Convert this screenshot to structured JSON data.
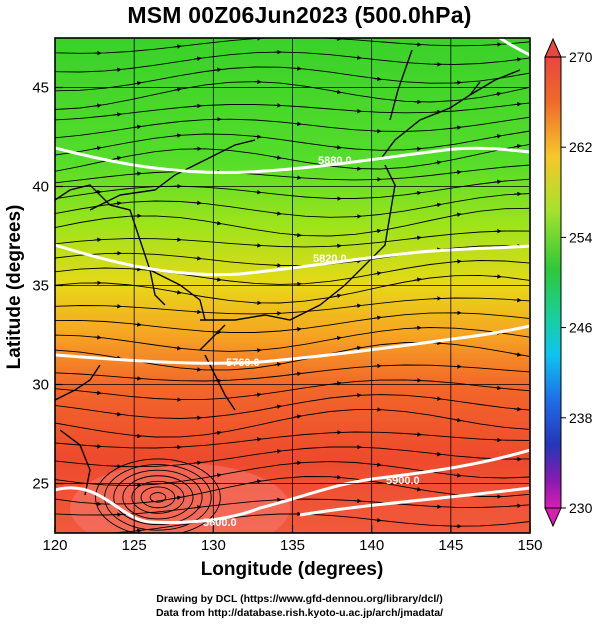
{
  "title": "MSM 00Z06Jun2023 (500.0hPa)",
  "axes": {
    "xlabel": "Longitude (degrees)",
    "ylabel": "Latitude  (degrees)",
    "x_ticks": [
      "120",
      "125",
      "130",
      "135",
      "140",
      "145",
      "150"
    ],
    "y_ticks": [
      "25",
      "30",
      "35",
      "40",
      "45"
    ]
  },
  "colorbar": {
    "ticks": [
      "270",
      "262",
      "254",
      "246",
      "238",
      "230"
    ]
  },
  "contour_labels": [
    "5880.0",
    "5820.0",
    "5760.0",
    "5700.0",
    "5640.0",
    "5600.0",
    "5900.0"
  ],
  "credits": {
    "line1": "Drawing by DCL (https://www.gfd-dennou.org/library/dcl/)",
    "line2": "Data from http://database.rish.kyoto-u.ac.jp/arch/jmadata/"
  },
  "chart_data": {
    "type": "heatmap",
    "title": "MSM 00Z06Jun2023 (500.0hPa)",
    "xlabel": "Longitude (degrees)",
    "ylabel": "Latitude  (degrees)",
    "xlim": [
      120,
      150
    ],
    "ylim": [
      22.5,
      47.5
    ],
    "colorbar_range": [
      230,
      270
    ],
    "fill_variable_approx": [
      {
        "lat": 47,
        "value": 256
      },
      {
        "lat": 44,
        "value": 257
      },
      {
        "lat": 41,
        "value": 257
      },
      {
        "lat": 39,
        "value": 258
      },
      {
        "lat": 36,
        "value": 261
      },
      {
        "lat": 34,
        "value": 264
      },
      {
        "lat": 32,
        "value": 266
      },
      {
        "lat": 29,
        "value": 267
      },
      {
        "lat": 26,
        "value": 268
      },
      {
        "lat": 24,
        "value": 269
      }
    ],
    "contour_lines": [
      {
        "label": "5900.0",
        "lat": 23.5
      },
      {
        "label": "5880.0",
        "lat": 31.5
      },
      {
        "label": "5820.0",
        "lat": 37.2
      },
      {
        "label": "5760.0",
        "lat": 42.0
      },
      {
        "label": "5700.0",
        "lat": 46.5
      }
    ],
    "grid": true
  }
}
